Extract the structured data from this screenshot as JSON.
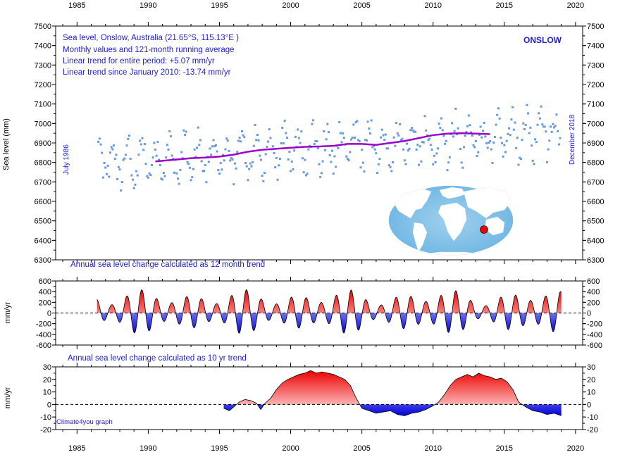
{
  "chart_data": [
    {
      "type": "scatter",
      "title": "ONSLOW",
      "annotations": [
        "Sea level, Onslow, Australia (21.65°S, 115.13°E )",
        "Monthly values and 121-month running average",
        "Linear trend for entire period: +5.07 mm/yr",
        "Linear trend since January 2010: -13.74 mm/yr"
      ],
      "start_label": "July 1986",
      "end_label": "December 2018",
      "ylabel": "Sea level (mm)",
      "xlim": [
        1983.5,
        2020.5
      ],
      "ylim": [
        6300,
        7500
      ],
      "x_ticks": [
        1985,
        1990,
        1995,
        2000,
        2005,
        2010,
        2015,
        2020
      ],
      "y_ticks": [
        6300,
        6400,
        6500,
        6600,
        6700,
        6800,
        6900,
        7000,
        7100,
        7200,
        7300,
        7400,
        7500
      ],
      "monthly_points": {
        "x_start": 1986.5,
        "x_step_months": 1,
        "baseline_mm": 6860,
        "trend_mm_per_yr": 5.07,
        "seasonal_amplitude_mm": 90,
        "scatter_mm": 70,
        "color": "#6699dd"
      },
      "running_average": {
        "name": "121-month running average",
        "color": "#9900cc",
        "x": [
          1990.5,
          1992,
          1993,
          1994,
          1995,
          1996,
          1997,
          1998,
          1999,
          2000,
          2001,
          2002,
          2003,
          2004,
          2005,
          2006,
          2007,
          2008,
          2009,
          2010,
          2011,
          2012,
          2013,
          2014
        ],
        "y": [
          6805,
          6815,
          6822,
          6825,
          6830,
          6840,
          6855,
          6865,
          6870,
          6875,
          6880,
          6882,
          6885,
          6895,
          6895,
          6890,
          6900,
          6910,
          6925,
          6940,
          6948,
          6950,
          6948,
          6945
        ]
      },
      "inset_map": {
        "marker_color": "#ee0000",
        "label": "world map"
      }
    },
    {
      "type": "area",
      "title": "Annual sea level change calculated as 12 month trend",
      "ylabel": "mm/yr",
      "xlim": [
        1983.5,
        2020.5
      ],
      "ylim": [
        -600,
        600
      ],
      "y_ticks": [
        -600,
        -400,
        -200,
        0,
        200,
        400,
        600
      ],
      "x_start": 1986.4,
      "x_end": 2019.0,
      "cycle_period_yr": 1.05
    },
    {
      "type": "area",
      "title": "Annual sea level change calculated as 10 yr trend",
      "ylabel": "mm/yr",
      "xlim": [
        1983.5,
        2020.5
      ],
      "ylim": [
        -20,
        30
      ],
      "y_ticks": [
        -20,
        -10,
        0,
        10,
        20,
        30
      ],
      "x": [
        1995.3,
        1995.7,
        1996.0,
        1996.4,
        1996.8,
        1997.2,
        1997.6,
        1997.9,
        1998.2,
        1998.6,
        1999.0,
        1999.4,
        1999.8,
        2000.2,
        2000.6,
        2001.0,
        2001.4,
        2001.8,
        2002.2,
        2002.6,
        2003.0,
        2003.4,
        2003.8,
        2004.2,
        2004.6,
        2005.0,
        2005.5,
        2006.0,
        2006.5,
        2007.0,
        2007.5,
        2008.0,
        2008.5,
        2009.0,
        2009.5,
        2010.0,
        2010.4,
        2010.8,
        2011.2,
        2011.6,
        2012.0,
        2012.4,
        2012.8,
        2013.2,
        2013.6,
        2014.0,
        2014.4,
        2014.8,
        2015.2,
        2015.6,
        2016.0,
        2016.5,
        2017.0,
        2017.5,
        2018.0,
        2018.5,
        2019.0
      ],
      "y": [
        -3,
        -5,
        -2,
        2,
        4,
        3,
        1,
        -4,
        1,
        5,
        12,
        17,
        20,
        22,
        24,
        25,
        27,
        25,
        26,
        25,
        24,
        22,
        20,
        15,
        5,
        -3,
        -5,
        -7,
        -6,
        -5,
        -8,
        -9,
        -7,
        -6,
        -4,
        -1,
        2,
        8,
        15,
        20,
        22,
        24,
        22,
        25,
        23,
        22,
        20,
        21,
        18,
        12,
        2,
        -2,
        -5,
        -6,
        -8,
        -7,
        -9
      ]
    }
  ],
  "credit": "Climate4you graph"
}
